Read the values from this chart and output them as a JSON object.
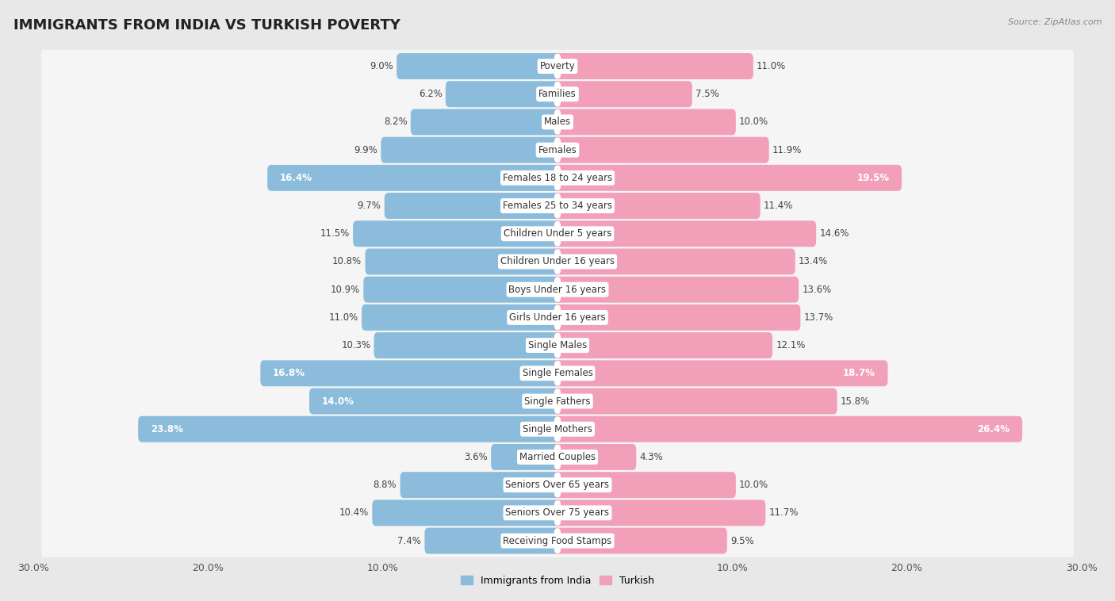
{
  "title": "IMMIGRANTS FROM INDIA VS TURKISH POVERTY",
  "source": "Source: ZipAtlas.com",
  "categories": [
    "Poverty",
    "Families",
    "Males",
    "Females",
    "Females 18 to 24 years",
    "Females 25 to 34 years",
    "Children Under 5 years",
    "Children Under 16 years",
    "Boys Under 16 years",
    "Girls Under 16 years",
    "Single Males",
    "Single Females",
    "Single Fathers",
    "Single Mothers",
    "Married Couples",
    "Seniors Over 65 years",
    "Seniors Over 75 years",
    "Receiving Food Stamps"
  ],
  "india_values": [
    9.0,
    6.2,
    8.2,
    9.9,
    16.4,
    9.7,
    11.5,
    10.8,
    10.9,
    11.0,
    10.3,
    16.8,
    14.0,
    23.8,
    3.6,
    8.8,
    10.4,
    7.4
  ],
  "turkish_values": [
    11.0,
    7.5,
    10.0,
    11.9,
    19.5,
    11.4,
    14.6,
    13.4,
    13.6,
    13.7,
    12.1,
    18.7,
    15.8,
    26.4,
    4.3,
    10.0,
    11.7,
    9.5
  ],
  "india_color": "#8bbcdb",
  "turkish_color": "#f2a0ba",
  "bg_color": "#e8e8e8",
  "row_bg_color": "#f5f5f5",
  "label_pill_color": "#ffffff",
  "axis_max": 30.0,
  "legend_labels": [
    "Immigrants from India",
    "Turkish"
  ],
  "title_fontsize": 13,
  "label_fontsize": 8.5,
  "value_fontsize": 8.5
}
